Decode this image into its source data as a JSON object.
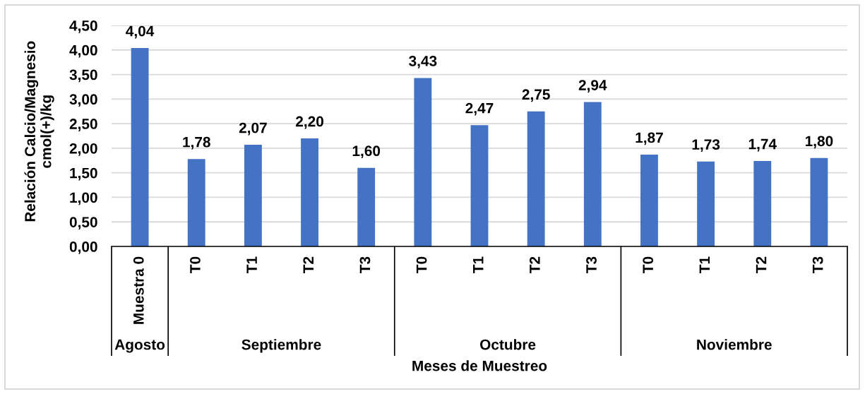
{
  "chart_data": {
    "type": "bar",
    "xlabel": "Meses de Muestreo",
    "ylabel": "Relación Calcio/Magnesio\ncmol(+)/kg",
    "categories": [
      "Muestra 0",
      "T0",
      "T1",
      "T2",
      "T3",
      "T0",
      "T1",
      "T2",
      "T3",
      "T0",
      "T1",
      "T2",
      "T3"
    ],
    "series": [
      {
        "color": "#4472c4",
        "values": [
          4.04,
          null,
          null,
          null,
          null,
          null,
          null,
          null,
          null,
          null,
          null,
          null,
          null
        ],
        "value_labels": [
          "4,04",
          null,
          null,
          null,
          null,
          null,
          null,
          null,
          null,
          null,
          null,
          null,
          null
        ]
      },
      {
        "color": "#4472c4",
        "values": [
          null,
          1.78,
          2.07,
          2.2,
          1.6,
          null,
          null,
          null,
          null,
          null,
          null,
          null,
          null
        ],
        "value_labels": [
          null,
          "1,78",
          "2,07",
          "2,20",
          "1,60",
          null,
          null,
          null,
          null,
          null,
          null,
          null,
          null
        ]
      },
      {
        "color": "#4472c4",
        "values": [
          null,
          null,
          null,
          null,
          null,
          3.43,
          2.47,
          2.75,
          2.94,
          null,
          null,
          null,
          null
        ],
        "value_labels": [
          null,
          null,
          null,
          null,
          null,
          "3,43",
          "2,47",
          "2,75",
          "2,94",
          null,
          null,
          null,
          null
        ]
      },
      {
        "color": "#4472c4",
        "values": [
          null,
          null,
          null,
          null,
          null,
          null,
          null,
          null,
          null,
          1.87,
          1.73,
          1.74,
          1.8
        ],
        "value_labels": [
          null,
          null,
          null,
          null,
          null,
          null,
          null,
          null,
          null,
          "1,87",
          "1,73",
          "1,74",
          "1,80"
        ]
      }
    ],
    "annotations": [
      "Agosto",
      "Septiembre",
      "Octubre",
      "Noviembre"
    ],
    "ylim": [
      0,
      4.5
    ],
    "yticks": [
      {
        "value": 0,
        "label": "0,00"
      },
      {
        "value": 0.5,
        "label": "0,50"
      },
      {
        "value": 1,
        "label": "1,00"
      },
      {
        "value": 1.5,
        "label": "1,50"
      },
      {
        "value": 2,
        "label": "2,00"
      },
      {
        "value": 2.5,
        "label": "2,50"
      },
      {
        "value": 3,
        "label": "3,00"
      },
      {
        "value": 3.5,
        "label": "3,50"
      },
      {
        "value": 4,
        "label": "4,00"
      },
      {
        "value": 4.5,
        "label": "4,50"
      }
    ],
    "grid": "y"
  }
}
